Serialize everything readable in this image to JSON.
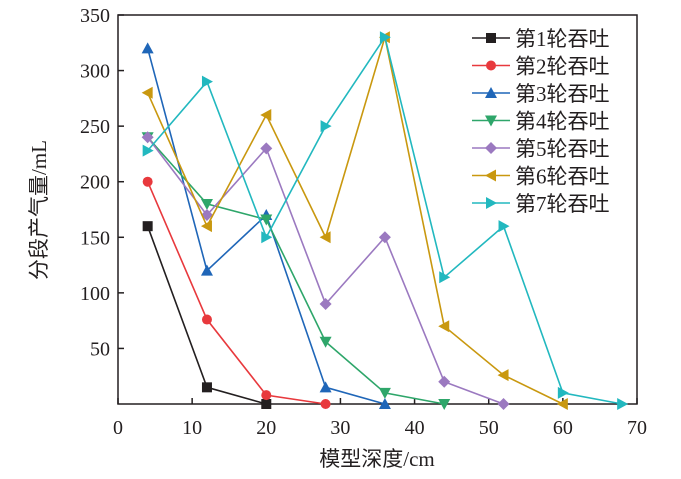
{
  "chart_data": {
    "type": "line",
    "xlabel": "模型深度/cm",
    "ylabel": "分段产气量/mL",
    "xlim": [
      0,
      70
    ],
    "ylim": [
      0,
      350
    ],
    "xticks": [
      0,
      10,
      20,
      30,
      40,
      50,
      60,
      70
    ],
    "yticks": [
      50,
      100,
      150,
      200,
      250,
      300,
      350
    ],
    "grid": false,
    "legend": "top-right",
    "series": [
      {
        "name": "第1轮吞吐",
        "color": "#231f20",
        "marker": "square",
        "x": [
          4,
          12,
          20
        ],
        "y": [
          160,
          15,
          0
        ]
      },
      {
        "name": "第2轮吞吐",
        "color": "#e8393d",
        "marker": "circle",
        "x": [
          4,
          12,
          20,
          28
        ],
        "y": [
          200,
          76,
          8,
          0
        ]
      },
      {
        "name": "第3轮吞吐",
        "color": "#1f66b8",
        "marker": "triangle-up",
        "x": [
          4,
          12,
          20,
          28,
          36
        ],
        "y": [
          320,
          120,
          170,
          15,
          0
        ]
      },
      {
        "name": "第4轮吞吐",
        "color": "#2ea66a",
        "marker": "triangle-down",
        "x": [
          4,
          12,
          20,
          28,
          36,
          44
        ],
        "y": [
          240,
          180,
          166,
          56,
          10,
          0
        ]
      },
      {
        "name": "第5轮吞吐",
        "color": "#9b79c0",
        "marker": "diamond",
        "x": [
          4,
          12,
          20,
          28,
          36,
          44,
          52
        ],
        "y": [
          240,
          170,
          230,
          90,
          150,
          20,
          0
        ]
      },
      {
        "name": "第6轮吞吐",
        "color": "#c9980f",
        "marker": "triangle-left",
        "x": [
          4,
          12,
          20,
          28,
          36,
          44,
          52,
          60
        ],
        "y": [
          280,
          160,
          260,
          150,
          330,
          70,
          26,
          0
        ]
      },
      {
        "name": "第7轮吞吐",
        "color": "#22b8bf",
        "marker": "triangle-right",
        "x": [
          4,
          12,
          20,
          28,
          36,
          44,
          52,
          60,
          68
        ],
        "y": [
          228,
          290,
          150,
          250,
          330,
          114,
          160,
          10,
          0
        ]
      }
    ]
  }
}
